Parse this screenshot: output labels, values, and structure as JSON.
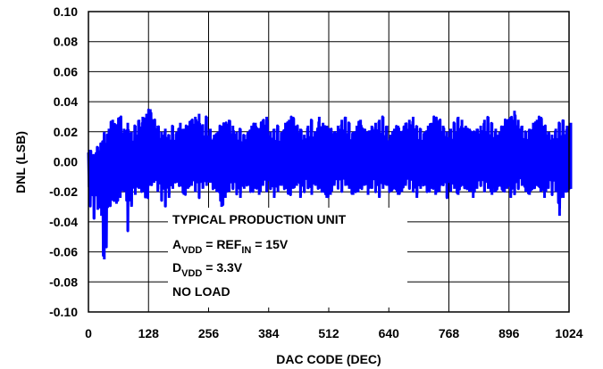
{
  "chart_data": {
    "type": "line",
    "xlabel": "DAC CODE (DEC)",
    "ylabel": "DNL (LSB)",
    "xlim": [
      0,
      1024
    ],
    "ylim": [
      -0.1,
      0.1
    ],
    "x_ticks": [
      "0",
      "128",
      "256",
      "384",
      "512",
      "640",
      "768",
      "896",
      "1024"
    ],
    "y_ticks": [
      "0.10",
      "0.08",
      "0.06",
      "0.04",
      "0.02",
      "0.00",
      "-0.02",
      "-0.04",
      "-0.06",
      "-0.08",
      "-0.10"
    ],
    "grid": true,
    "series_color": "#0000ff",
    "annotations": {
      "line1": "TYPICAL PRODUCTION UNIT",
      "line2_a": "A",
      "line2_a_sub": "VDD",
      "line2_mid": " = REF",
      "line2_ref_sub": "IN",
      "line2_end": " = 15V",
      "line3_d": "D",
      "line3_d_sub": "VDD",
      "line3_end": " = 3.3V",
      "line4": "NO LOAD"
    },
    "series": [
      {
        "x": [
          0,
          8,
          16,
          24,
          30,
          40,
          48,
          56,
          64,
          72,
          80,
          88,
          96,
          104,
          112,
          120,
          128,
          136,
          144,
          152,
          160,
          168,
          176,
          184,
          192,
          200,
          208,
          216,
          224,
          232,
          240,
          248,
          256,
          264,
          272,
          280,
          288,
          296,
          304,
          312,
          320,
          328,
          336,
          344,
          352,
          360,
          368,
          376,
          384,
          392,
          400,
          408,
          416,
          424,
          432,
          440,
          448,
          456,
          464,
          472,
          480,
          488,
          496,
          504,
          512,
          520,
          528,
          536,
          544,
          552,
          560,
          568,
          576,
          584,
          592,
          600,
          608,
          616,
          624,
          632,
          640,
          648,
          656,
          664,
          672,
          680,
          688,
          696,
          704,
          712,
          720,
          728,
          736,
          744,
          752,
          760,
          768,
          776,
          784,
          792,
          800,
          808,
          816,
          824,
          832,
          840,
          848,
          856,
          864,
          872,
          880,
          888,
          896,
          904,
          912,
          920,
          928,
          936,
          944,
          952,
          960,
          968,
          976,
          984,
          992,
          1000,
          1008,
          1016,
          1024
        ],
        "y_high": [
          0.008,
          0.005,
          0.01,
          0.012,
          0.02,
          0.022,
          0.028,
          0.025,
          0.03,
          0.022,
          0.026,
          0.02,
          0.024,
          0.028,
          0.03,
          0.032,
          0.035,
          0.028,
          0.024,
          0.02,
          0.022,
          0.018,
          0.024,
          0.02,
          0.026,
          0.022,
          0.024,
          0.028,
          0.03,
          0.032,
          0.025,
          0.03,
          0.022,
          0.018,
          0.02,
          0.024,
          0.026,
          0.028,
          0.024,
          0.02,
          0.022,
          0.018,
          0.02,
          0.024,
          0.026,
          0.022,
          0.028,
          0.03,
          0.02,
          0.022,
          0.024,
          0.02,
          0.026,
          0.028,
          0.03,
          0.024,
          0.022,
          0.018,
          0.024,
          0.028,
          0.02,
          0.03,
          0.026,
          0.024,
          0.022,
          0.02,
          0.024,
          0.028,
          0.03,
          0.026,
          0.02,
          0.024,
          0.028,
          0.022,
          0.02,
          0.024,
          0.026,
          0.028,
          0.03,
          0.024,
          0.018,
          0.022,
          0.024,
          0.02,
          0.026,
          0.028,
          0.03,
          0.024,
          0.022,
          0.02,
          0.024,
          0.026,
          0.03,
          0.028,
          0.024,
          0.02,
          0.022,
          0.026,
          0.03,
          0.028,
          0.024,
          0.022,
          0.02,
          0.022,
          0.024,
          0.028,
          0.03,
          0.026,
          0.022,
          0.02,
          0.024,
          0.028,
          0.03,
          0.034,
          0.028,
          0.024,
          0.02,
          0.022,
          0.026,
          0.028,
          0.03,
          0.024,
          0.02,
          0.018,
          0.022,
          0.026,
          0.028,
          0.024,
          0.026
        ],
        "y_low": [
          -0.03,
          -0.038,
          -0.032,
          -0.036,
          -0.065,
          -0.03,
          -0.026,
          -0.028,
          -0.024,
          -0.02,
          -0.046,
          -0.03,
          -0.022,
          -0.018,
          -0.02,
          -0.024,
          -0.016,
          -0.014,
          -0.02,
          -0.026,
          -0.03,
          -0.024,
          -0.018,
          -0.014,
          -0.016,
          -0.022,
          -0.018,
          -0.016,
          -0.02,
          -0.024,
          -0.018,
          -0.016,
          -0.014,
          -0.018,
          -0.02,
          -0.03,
          -0.024,
          -0.02,
          -0.018,
          -0.022,
          -0.024,
          -0.018,
          -0.016,
          -0.02,
          -0.018,
          -0.022,
          -0.016,
          -0.02,
          -0.018,
          -0.024,
          -0.02,
          -0.016,
          -0.018,
          -0.022,
          -0.018,
          -0.016,
          -0.024,
          -0.02,
          -0.018,
          -0.022,
          -0.016,
          -0.018,
          -0.02,
          -0.024,
          -0.022,
          -0.016,
          -0.018,
          -0.02,
          -0.016,
          -0.018,
          -0.022,
          -0.02,
          -0.018,
          -0.016,
          -0.022,
          -0.018,
          -0.02,
          -0.024,
          -0.018,
          -0.016,
          -0.02,
          -0.018,
          -0.022,
          -0.02,
          -0.016,
          -0.018,
          -0.02,
          -0.024,
          -0.018,
          -0.016,
          -0.02,
          -0.018,
          -0.022,
          -0.02,
          -0.016,
          -0.024,
          -0.02,
          -0.018,
          -0.022,
          -0.016,
          -0.018,
          -0.02,
          -0.024,
          -0.018,
          -0.016,
          -0.02,
          -0.018,
          -0.022,
          -0.02,
          -0.016,
          -0.02,
          -0.018,
          -0.024,
          -0.022,
          -0.018,
          -0.016,
          -0.02,
          -0.022,
          -0.018,
          -0.016,
          -0.02,
          -0.024,
          -0.018,
          -0.022,
          -0.02,
          -0.036,
          -0.024,
          -0.02,
          -0.018
        ]
      }
    ]
  }
}
